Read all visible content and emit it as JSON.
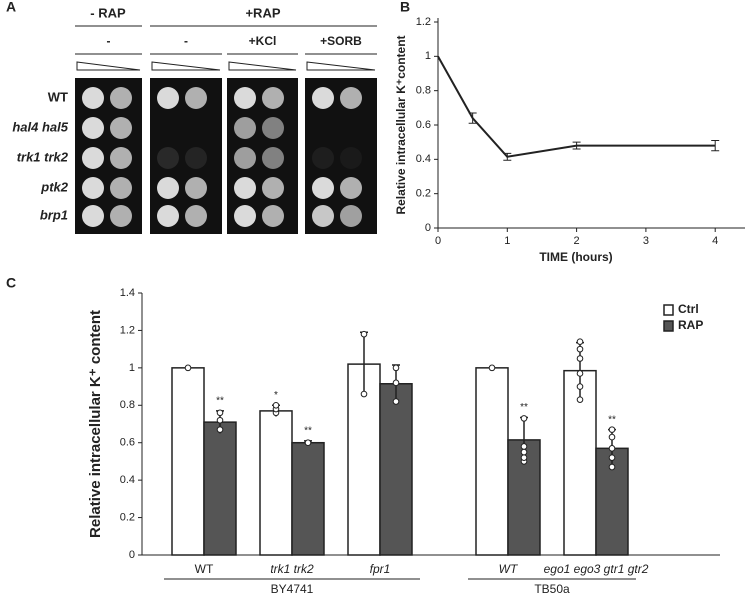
{
  "panel_labels": [
    "A",
    "B",
    "C"
  ],
  "spot_assay": {
    "conditions": [
      "- RAP",
      "+RAP"
    ],
    "treatments": [
      "-",
      "-",
      "+KCl",
      "+SORB"
    ],
    "strains": [
      "WT",
      "hal4 hal5",
      "trk1 trk2",
      "ptk2",
      "brp1"
    ]
  },
  "chart_data": [
    {
      "type": "line",
      "ylabel": "Relative intracellular K⁺content",
      "xlabel": "TIME (hours)",
      "x": [
        0,
        0.5,
        1,
        2,
        4
      ],
      "series": [
        {
          "color": "#222222",
          "values": [
            1,
            0.64,
            0.415,
            0.48,
            0.48
          ],
          "errors": [
            0,
            0.03,
            0.02,
            0.02,
            0.03
          ]
        }
      ],
      "xlim": [
        0,
        4.43
      ],
      "xticks": [
        0,
        1,
        2,
        3,
        4
      ],
      "ylim": [
        0,
        1.2
      ],
      "yticks": [
        0,
        0.2,
        0.4,
        0.6,
        0.8,
        1,
        1.2
      ]
    },
    {
      "type": "bar",
      "ylabel": "Relative intracellular K⁺ content",
      "groups": [
        {
          "name": "BY4741",
          "categories": [
            "WT",
            "trk1 trk2",
            "fpr1"
          ]
        },
        {
          "name": "TB50a",
          "categories": [
            "WT",
            "ego1 ego3 gtr1 gtr2"
          ]
        }
      ],
      "series": [
        {
          "name": "Ctrl",
          "color": "#ffffff",
          "values": [
            1.0,
            0.77,
            1.02,
            1.0,
            0.985
          ],
          "errors": [
            0,
            0.03,
            0.17,
            0,
            0.15
          ],
          "points": [
            [
              1.0
            ],
            [
              0.76,
              0.78,
              0.8
            ],
            [
              0.86,
              1.18
            ],
            [
              1.0
            ],
            [
              0.83,
              0.9,
              0.97,
              1.05,
              1.1,
              1.14
            ]
          ],
          "annotations": [
            null,
            "*",
            null,
            null,
            null
          ]
        },
        {
          "name": "RAP",
          "color": "#555555",
          "values": [
            0.71,
            0.6,
            0.915,
            0.615,
            0.57
          ],
          "errors": [
            0.06,
            0.01,
            0.1,
            0.12,
            0.1
          ],
          "points": [
            [
              0.67,
              0.72,
              0.76
            ],
            [
              0.6
            ],
            [
              0.82,
              0.92,
              1.0
            ],
            [
              0.5,
              0.52,
              0.55,
              0.58,
              0.73
            ],
            [
              0.47,
              0.52,
              0.57,
              0.63,
              0.67
            ]
          ],
          "annotations": [
            "**",
            "**",
            null,
            "**",
            "**"
          ]
        }
      ],
      "ylim": [
        0,
        1.4
      ],
      "yticks": [
        0,
        0.2,
        0.4,
        0.6,
        0.8,
        1,
        1.2,
        1.4
      ],
      "legend": "upper right"
    }
  ]
}
